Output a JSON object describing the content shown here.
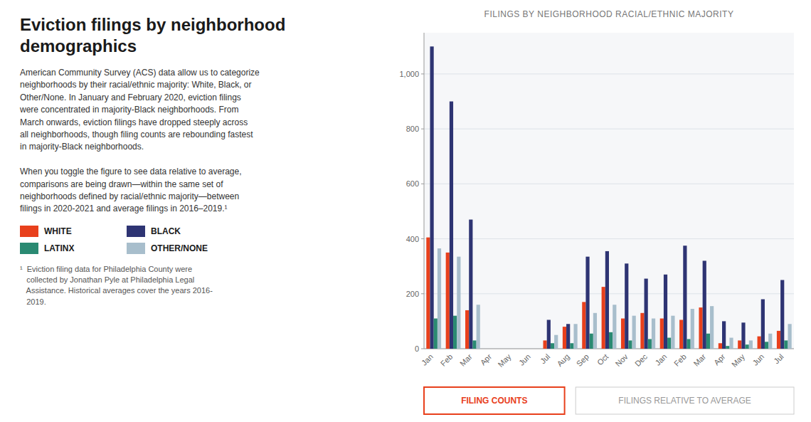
{
  "chart_data": {
    "type": "bar",
    "title": "FILINGS BY NEIGHBORHOOD RACIAL/ETHNIC MAJORITY",
    "categories": [
      "Jan",
      "Feb",
      "Mar",
      "Apr",
      "May",
      "Jun",
      "Jul",
      "Aug",
      "Sep",
      "Oct",
      "Nov",
      "Dec",
      "Jan",
      "Feb",
      "Mar",
      "Apr",
      "May",
      "Jun",
      "Jul"
    ],
    "series": [
      {
        "name": "WHITE",
        "color": "#E8401C",
        "values": [
          405,
          350,
          140,
          0,
          0,
          0,
          30,
          80,
          170,
          225,
          110,
          130,
          110,
          105,
          150,
          20,
          30,
          45,
          65
        ]
      },
      {
        "name": "BLACK",
        "color": "#2E3473",
        "values": [
          1100,
          900,
          470,
          0,
          0,
          0,
          105,
          90,
          335,
          355,
          310,
          255,
          270,
          375,
          320,
          100,
          95,
          180,
          250
        ]
      },
      {
        "name": "LATINX",
        "color": "#2A8A72",
        "values": [
          110,
          120,
          30,
          0,
          0,
          0,
          20,
          20,
          55,
          60,
          30,
          35,
          40,
          35,
          55,
          10,
          15,
          25,
          30
        ]
      },
      {
        "name": "OTHER/NONE",
        "color": "#A8BECC",
        "values": [
          365,
          335,
          160,
          0,
          0,
          0,
          50,
          90,
          130,
          160,
          120,
          110,
          120,
          145,
          155,
          40,
          30,
          55,
          90
        ]
      }
    ],
    "ylim": [
      0,
      1150
    ],
    "yticks": [
      0,
      200,
      400,
      600,
      800,
      {
        "value": 1000,
        "label": "1,000"
      }
    ],
    "grid": true
  },
  "heading": "Eviction filings by neighborhood\ndemographics",
  "description": "American Community Survey (ACS) data allow us to categorize\nneighborhoods by their racial/ethnic majority: White, Black, or\nOther/None. In January and February 2020, eviction filings\nwere concentrated in majority-Black neighborhoods. From\nMarch onwards, eviction filings have dropped steeply across\nall neighborhoods, though filing counts are rebounding fastest\nin majority-Black neighborhoods.\n\nWhen you toggle the figure to see data relative to average,\ncomparisons are being drawn—within the same set of\nneighborhoods defined by racial/ethnic majority—between\nfilings in 2020-2021 and average filings in 2016–2019.¹",
  "footnote": "¹  Eviction filing data for Philadelphia County were\n   collected by Jonathan Pyle at Philadelphia Legal\n   Assistance. Historical averages cover the years 2016-\n   2019.",
  "buttons": [
    {
      "text": "FILING COUNTS",
      "color": "#E8401C"
    },
    {
      "text": "FILINGS RELATIVE TO AVERAGE"
    }
  ]
}
